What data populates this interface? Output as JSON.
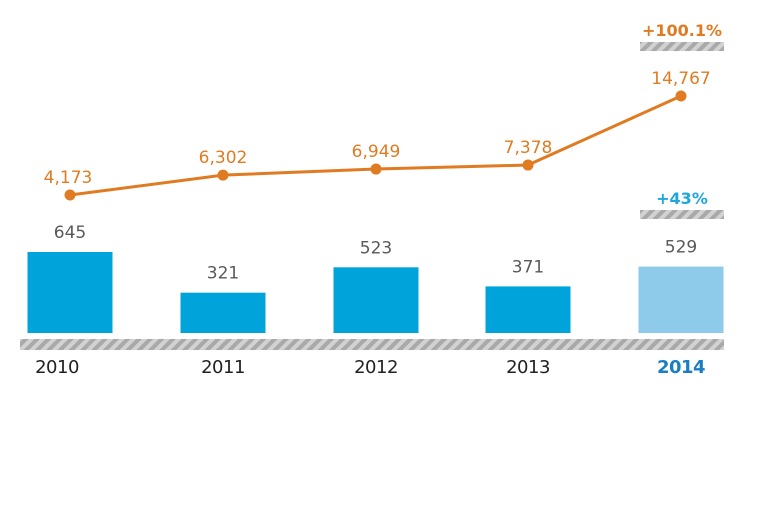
{
  "chart_data": {
    "type": "bar",
    "categories": [
      "2010",
      "2011",
      "2012",
      "2013",
      "2014"
    ],
    "highlight_category": "2014",
    "series": [
      {
        "type": "bar",
        "values": [
          645,
          321,
          523,
          371,
          529
        ],
        "labels": [
          "645",
          "321",
          "523",
          "371",
          "529"
        ],
        "color": "#00a3da",
        "highlight_color": "#8ecbea"
      },
      {
        "type": "line",
        "values": [
          4173,
          6302,
          6949,
          7378,
          14767
        ],
        "labels": [
          "4,173",
          "6,302",
          "6,949",
          "7,378",
          "14,767"
        ],
        "color": "#e07b22"
      }
    ],
    "annotations": {
      "line_growth": "+100.1%",
      "bar_growth": "+43%"
    },
    "axis_color": "#b5b5b5",
    "year_highlight_color": "#1a7fc1"
  }
}
